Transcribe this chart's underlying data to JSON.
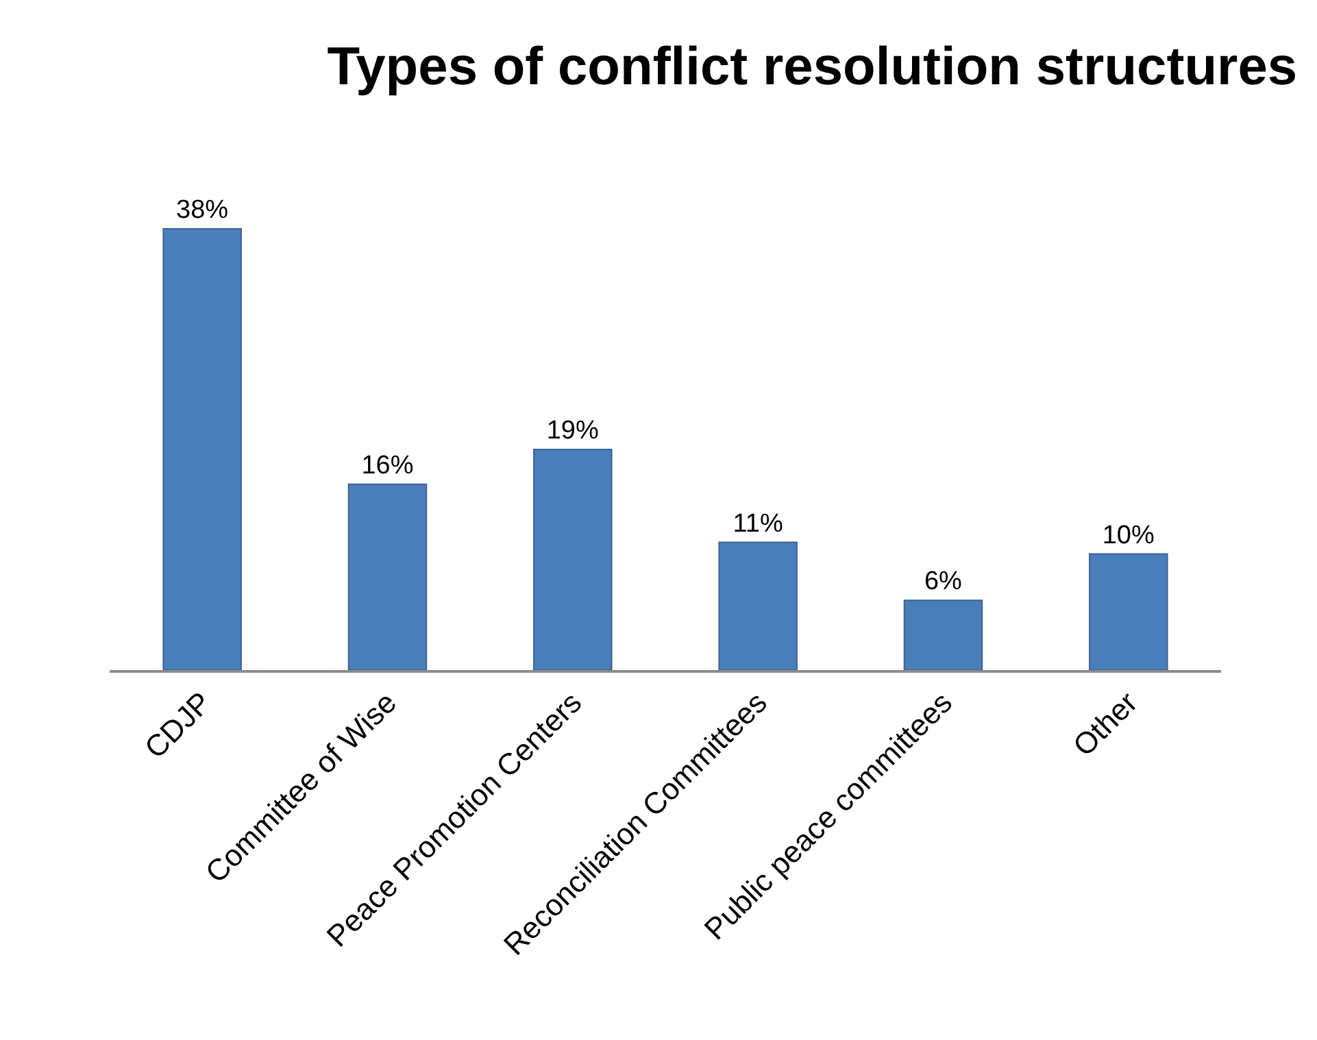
{
  "chart_data": {
    "type": "bar",
    "title": "Types of conflict resolution structures",
    "categories": [
      "CDJP",
      "Committee of Wise",
      "Peace Promotion Centers",
      "Reconciliation Committees",
      "Public peace committees",
      "Other"
    ],
    "values": [
      38,
      16,
      19,
      11,
      6,
      10
    ],
    "value_labels": [
      "38%",
      "16%",
      "19%",
      "11%",
      "6%",
      "10%"
    ],
    "color": "#4a7ebb"
  }
}
